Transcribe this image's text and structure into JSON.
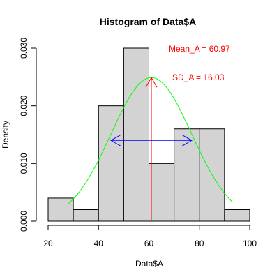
{
  "chart_data": {
    "type": "bar",
    "title": "Histogram of Data$A",
    "xlabel": "Data$A",
    "ylabel": "Density",
    "bins": [
      {
        "from": 20,
        "to": 30,
        "density": 0.004
      },
      {
        "from": 30,
        "to": 40,
        "density": 0.002
      },
      {
        "from": 40,
        "to": 50,
        "density": 0.02
      },
      {
        "from": 50,
        "to": 60,
        "density": 0.03
      },
      {
        "from": 60,
        "to": 70,
        "density": 0.01
      },
      {
        "from": 70,
        "to": 80,
        "density": 0.016
      },
      {
        "from": 80,
        "to": 90,
        "density": 0.016
      },
      {
        "from": 90,
        "to": 100,
        "density": 0.002
      }
    ],
    "xlim": [
      20,
      100
    ],
    "ylim": [
      0,
      0.03
    ],
    "x_ticks": [
      20,
      40,
      60,
      80,
      100
    ],
    "x_tick_labels": [
      "20",
      "40",
      "60",
      "80",
      "100"
    ],
    "y_ticks": [
      0,
      0.01,
      0.02,
      0.03
    ],
    "y_tick_labels": [
      "0.000",
      "0.010",
      "0.020",
      "0.030"
    ],
    "normal_curve": {
      "mean": 60.97,
      "sd": 16.03,
      "x_from": 28,
      "x_to": 93,
      "color": "#00ff00"
    },
    "mean_line": {
      "x": 60.97,
      "color": "#ff0000",
      "label": "Mean_A = 60.97"
    },
    "sd_arrow": {
      "from": 44.94,
      "to": 77.0,
      "y": 0.014,
      "color": "#0000ff",
      "label": "SD_A = 16.03"
    },
    "annotation_color": "#ff0000",
    "bar_fill": "#d3d3d3",
    "bar_stroke": "#000000",
    "grid": false
  }
}
